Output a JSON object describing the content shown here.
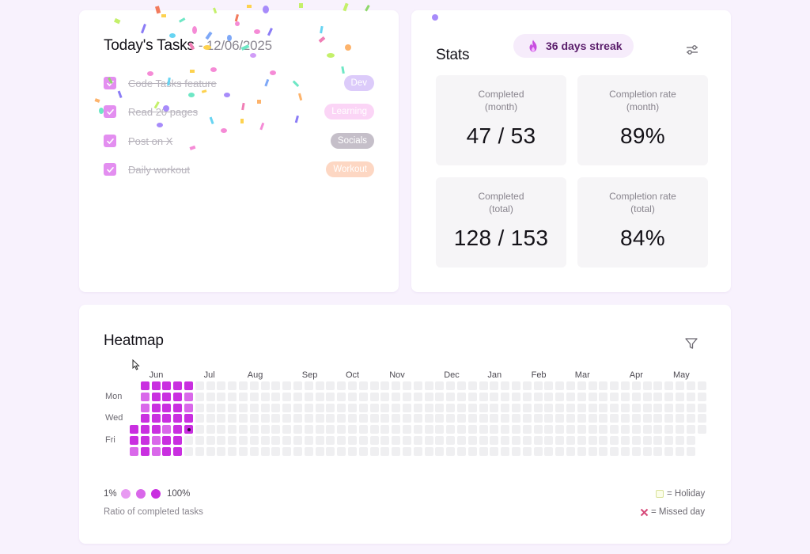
{
  "colors": {
    "accent": "#e38ef0",
    "cell_empty": "#efeff1",
    "level_low": "#e89af2",
    "level_mid": "#d968ea",
    "level_high": "#c92fe0",
    "background": "#f8f2fd"
  },
  "tasks_card": {
    "title": "Today's Tasks",
    "date_prefix": "- ",
    "date": "12/06/2025",
    "tasks": [
      {
        "label": "Code Tasks feature",
        "tag": "Dev",
        "tag_bg": "#dccbfa",
        "tag_fg": "#ffffff",
        "done": true
      },
      {
        "label": "Read 20 pages",
        "tag": "Learning",
        "tag_bg": "#fbd5f6",
        "tag_fg": "#ffffff",
        "done": true
      },
      {
        "label": "Post on X",
        "tag": "Socials",
        "tag_bg": "#c5bfc9",
        "tag_fg": "#ffffff",
        "done": true
      },
      {
        "label": "Daily workout",
        "tag": "Workout",
        "tag_bg": "#fdd7c3",
        "tag_fg": "#ffffff",
        "done": true
      }
    ]
  },
  "stats_card": {
    "title": "Stats",
    "streak": "36 days streak",
    "settings_icon": "sliders-icon",
    "boxes": [
      {
        "line1": "Completed",
        "line2": "(month)",
        "value": "47 / 53"
      },
      {
        "line1": "Completion rate",
        "line2": "(month)",
        "value": "89%"
      },
      {
        "line1": "Completed",
        "line2": "(total)",
        "value": "128 / 153"
      },
      {
        "line1": "Completion rate",
        "line2": "(total)",
        "value": "84%"
      }
    ]
  },
  "heatmap_card": {
    "title": "Heatmap",
    "filter_icon": "filter-icon",
    "months": [
      {
        "label": "Jun",
        "col": 2
      },
      {
        "label": "Jul",
        "col": 7
      },
      {
        "label": "Aug",
        "col": 11
      },
      {
        "label": "Sep",
        "col": 16
      },
      {
        "label": "Oct",
        "col": 20
      },
      {
        "label": "Nov",
        "col": 24
      },
      {
        "label": "Dec",
        "col": 29
      },
      {
        "label": "Jan",
        "col": 33
      },
      {
        "label": "Feb",
        "col": 37
      },
      {
        "label": "Mar",
        "col": 41
      },
      {
        "label": "Apr",
        "col": 46
      },
      {
        "label": "May",
        "col": 50
      }
    ],
    "day_labels": [
      {
        "label": "Mon",
        "row": 1
      },
      {
        "label": "Wed",
        "row": 3
      },
      {
        "label": "Fri",
        "row": 5
      }
    ],
    "grid_columns": 53,
    "grid_rows": 7,
    "first_column_start_row": 4,
    "last_column_end_row": 4,
    "filled_levels": [
      [
        null,
        null,
        null,
        null,
        3,
        3,
        2
      ],
      [
        3,
        2,
        2,
        3,
        3,
        3,
        3
      ],
      [
        3,
        3,
        3,
        3,
        3,
        2,
        2
      ],
      [
        3,
        3,
        3,
        3,
        2,
        3,
        3
      ],
      [
        3,
        3,
        3,
        3,
        3,
        3,
        3
      ],
      [
        3,
        2,
        2,
        3,
        "today",
        0,
        0
      ]
    ],
    "legend_min": "1%",
    "legend_max": "100%",
    "legend_caption": "Ratio of completed tasks",
    "holiday_legend": "= Holiday",
    "missed_legend": "= Missed day"
  }
}
